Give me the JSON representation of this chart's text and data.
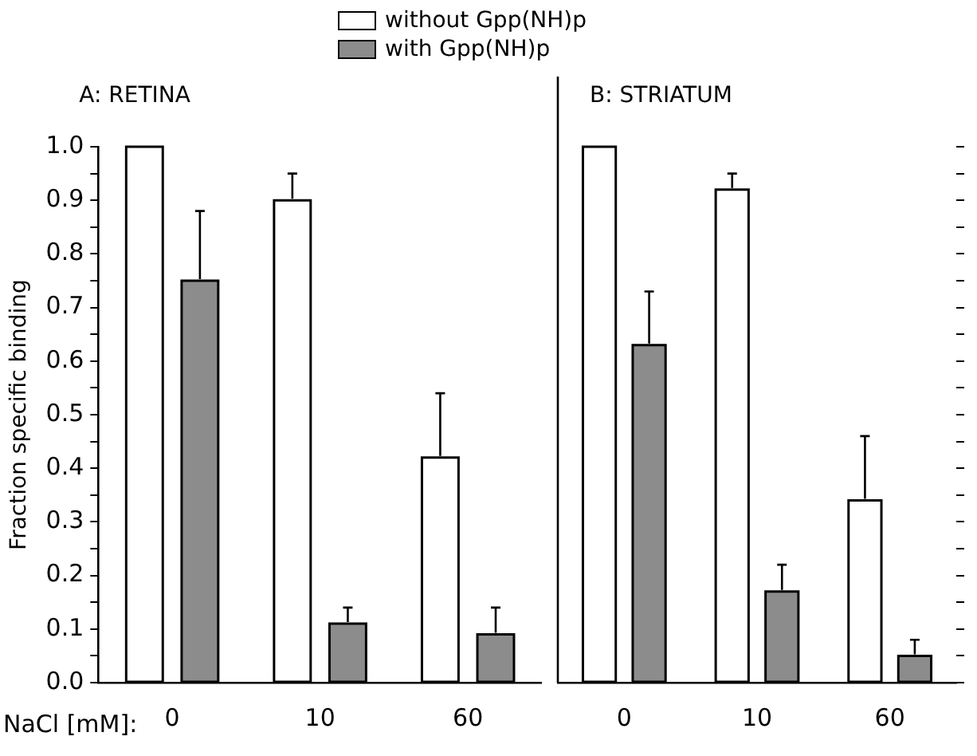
{
  "chart_data": [
    {
      "type": "bar",
      "title": "A: RETINA",
      "xlabel": "NaCl [mM]:",
      "ylabel": "Fraction specific binding",
      "categories": [
        "0",
        "10",
        "60"
      ],
      "series": [
        {
          "name": "without Gpp(NH)p",
          "color": "#ffffff",
          "values": [
            1.0,
            0.9,
            0.42
          ],
          "errors": [
            null,
            [
              0.9,
              0.95
            ],
            [
              0.42,
              0.54
            ]
          ]
        },
        {
          "name": "with Gpp(NH)p",
          "color": "#8c8c8c",
          "values": [
            0.75,
            0.11,
            0.09
          ],
          "errors": [
            [
              0.75,
              0.88
            ],
            [
              0.11,
              0.14
            ],
            [
              0.09,
              0.14
            ]
          ]
        }
      ],
      "ylim": [
        0,
        1
      ],
      "yticks": [
        {
          "value": 0,
          "label": "0.0"
        },
        {
          "value": 0.05,
          "label": null
        },
        {
          "value": 0.1,
          "label": "0.1"
        },
        {
          "value": 0.15,
          "label": null
        },
        {
          "value": 0.2,
          "label": "0.2"
        },
        {
          "value": 0.25,
          "label": null
        },
        {
          "value": 0.3,
          "label": "0.3"
        },
        {
          "value": 0.35,
          "label": null
        },
        {
          "value": 0.4,
          "label": "0.4"
        },
        {
          "value": 0.45,
          "label": null
        },
        {
          "value": 0.5,
          "label": "0.5"
        },
        {
          "value": 0.55,
          "label": null
        },
        {
          "value": 0.6,
          "label": "0.6"
        },
        {
          "value": 0.65,
          "label": null
        },
        {
          "value": 0.7,
          "label": "0.7"
        },
        {
          "value": 0.75,
          "label": null
        },
        {
          "value": 0.8,
          "label": "0.8"
        },
        {
          "value": 0.85,
          "label": null
        },
        {
          "value": 0.9,
          "label": "0.9"
        },
        {
          "value": 0.95,
          "label": null
        },
        {
          "value": 1,
          "label": "1.0"
        }
      ],
      "grid": false,
      "legend": "top"
    },
    {
      "type": "bar",
      "title": "B: STRIATUM",
      "categories": [
        "0",
        "10",
        "60"
      ],
      "series": [
        {
          "color": "#ffffff",
          "values": [
            1.0,
            0.92,
            0.34
          ],
          "errors": [
            null,
            [
              0.92,
              0.95
            ],
            [
              0.34,
              0.46
            ]
          ]
        },
        {
          "color": "#8c8c8c",
          "values": [
            0.63,
            0.17,
            0.05
          ],
          "errors": [
            [
              0.63,
              0.73
            ],
            [
              0.17,
              0.22
            ],
            [
              0.05,
              0.08
            ]
          ]
        }
      ],
      "ylim": [
        0,
        1
      ],
      "yticks": [
        {
          "value": 0,
          "label": null
        },
        {
          "value": 0.05,
          "label": null
        },
        {
          "value": 0.1,
          "label": null
        },
        {
          "value": 0.15,
          "label": null
        },
        {
          "value": 0.2,
          "label": null
        },
        {
          "value": 0.25,
          "label": null
        },
        {
          "value": 0.3,
          "label": null
        },
        {
          "value": 0.35,
          "label": null
        },
        {
          "value": 0.4,
          "label": null
        },
        {
          "value": 0.45,
          "label": null
        },
        {
          "value": 0.5,
          "label": null
        },
        {
          "value": 0.55,
          "label": null
        },
        {
          "value": 0.6,
          "label": null
        },
        {
          "value": 0.65,
          "label": null
        },
        {
          "value": 0.7,
          "label": null
        },
        {
          "value": 0.75,
          "label": null
        },
        {
          "value": 0.8,
          "label": null
        },
        {
          "value": 0.85,
          "label": null
        },
        {
          "value": 0.9,
          "label": null
        },
        {
          "value": 0.95,
          "label": null
        },
        {
          "value": 1,
          "label": null
        }
      ],
      "tick_labels": "x",
      "grid": false,
      "legend": false
    }
  ]
}
